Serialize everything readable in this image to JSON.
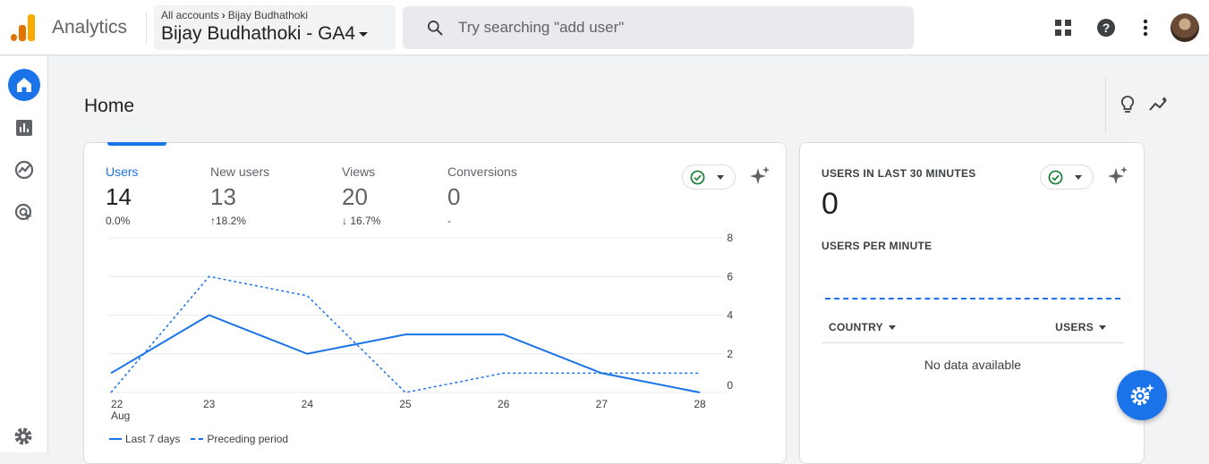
{
  "header": {
    "app_name": "Analytics",
    "breadcrumb_root": "All accounts",
    "breadcrumb_account": "Bijay Budhathoki",
    "property": "Bijay Budhathoki - GA4",
    "search_placeholder": "Try searching \"add user\"",
    "icons": [
      "apps-grid-icon",
      "help-icon",
      "more-vert-icon",
      "avatar"
    ]
  },
  "rail": {
    "items": [
      "home-icon",
      "reports-icon",
      "explore-icon",
      "advertising-icon"
    ],
    "bottom": "admin-gear-icon"
  },
  "page": {
    "title": "Home"
  },
  "overview": {
    "metrics": [
      {
        "label": "Users",
        "value": "14",
        "change": "0.0%",
        "direction": "none"
      },
      {
        "label": "New users",
        "value": "13",
        "change": "18.2%",
        "direction": "up"
      },
      {
        "label": "Views",
        "value": "20",
        "change": "16.7%",
        "direction": "down"
      },
      {
        "label": "Conversions",
        "value": "0",
        "change": "-",
        "direction": "none"
      }
    ],
    "legend": {
      "current": "Last 7 days",
      "previous": "Preceding period"
    }
  },
  "chart_data": {
    "type": "line",
    "x": [
      "22",
      "23",
      "24",
      "25",
      "26",
      "27",
      "28"
    ],
    "x_sublabel": "Aug",
    "yticks": [
      "0",
      "2",
      "4",
      "6",
      "8"
    ],
    "ylim": [
      0,
      8
    ],
    "series": [
      {
        "name": "Last 7 days",
        "values": [
          1,
          4,
          2,
          3,
          3,
          1,
          0
        ],
        "style": "solid"
      },
      {
        "name": "Preceding period",
        "values": [
          0,
          6,
          5,
          0,
          1,
          1,
          1
        ],
        "style": "dashed"
      }
    ],
    "grid": true,
    "colors": {
      "line": "#1a73e8",
      "grid": "#e8eaed"
    }
  },
  "realtime": {
    "title": "USERS IN LAST 30 MINUTES",
    "value": "0",
    "per_minute_label": "USERS PER MINUTE",
    "col_country": "COUNTRY",
    "col_users": "USERS",
    "empty": "No data available"
  },
  "colors": {
    "accent": "#1a73e8",
    "up": "#137333",
    "down": "#c5221f",
    "check": "#188038"
  }
}
